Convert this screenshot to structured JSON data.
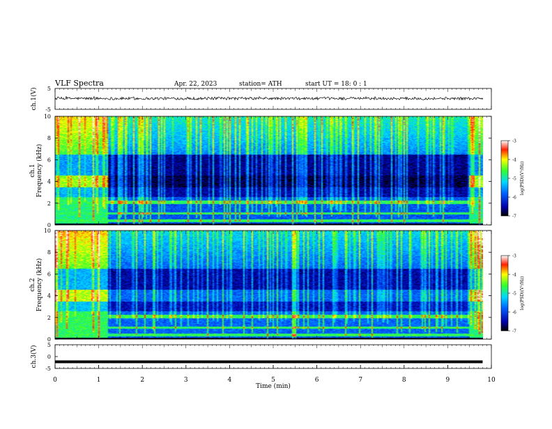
{
  "header": {
    "title": "VLF  Spectra",
    "date": "Apr. 22, 2023",
    "station": "station= ATH",
    "start": "start  UT  =    18: 0   : 1"
  },
  "chart_data": [
    {
      "type": "line",
      "name": "ch1-waveform",
      "ylabel": "ch.1(V)",
      "ylim": [
        -5,
        5
      ],
      "yticks": [
        "5",
        "-5"
      ],
      "xlim": [
        0,
        10
      ],
      "x_unit": "min",
      "description_values": {
        "baseline": 0.2,
        "amplitude": 0.6
      }
    },
    {
      "type": "heatmap",
      "name": "ch1-spectrogram",
      "ylabel_top": "ch.1",
      "ylabel": "Frequency  (kHz)",
      "ylim": [
        0,
        10
      ],
      "yticks": [
        "0",
        "2",
        "4",
        "6",
        "8",
        "10"
      ],
      "xlim": [
        0,
        10
      ],
      "colorbar": {
        "label": "log(PSD)(V²/Hz)",
        "range": [
          -7,
          -3
        ],
        "ticks": [
          "-3",
          "-4",
          "-5",
          "-6",
          "-7"
        ]
      },
      "segments": [
        {
          "x": [
            0,
            1.2
          ],
          "level_high": -4.6,
          "level_low": -5.3,
          "band_4kHz": -4.3
        },
        {
          "x": [
            1.2,
            9.45
          ],
          "level_high": -5.6,
          "level_low": -6.4,
          "band_4kHz": -6.8
        },
        {
          "x": [
            9.45,
            9.8
          ],
          "level_high": -4.8,
          "level_low": -5.4,
          "band_4kHz": -4.3
        }
      ]
    },
    {
      "type": "heatmap",
      "name": "ch2-spectrogram",
      "ylabel_top": "ch.2",
      "ylabel": "Frequency  (kHz)",
      "ylim": [
        0,
        10
      ],
      "yticks": [
        "0",
        "2",
        "4",
        "6",
        "8",
        "10"
      ],
      "xlim": [
        0,
        10
      ],
      "colorbar": {
        "label": "log(PSD)(V²/Hz)",
        "range": [
          -7,
          -3
        ],
        "ticks": [
          "-3",
          "-4",
          "-5",
          "-6",
          "-7"
        ]
      },
      "segments": [
        {
          "x": [
            0,
            1.2
          ],
          "level_high": -4.5,
          "level_low": -5.2,
          "band_4kHz": -4.2
        },
        {
          "x": [
            1.2,
            9.45
          ],
          "level_high": -5.8,
          "level_low": -6.3,
          "band_4kHz": -5.8
        },
        {
          "x": [
            9.45,
            9.8
          ],
          "level_high": -4.7,
          "level_low": -5.3,
          "band_4kHz": -4.3
        }
      ]
    },
    {
      "type": "line",
      "name": "ch3-waveform",
      "ylabel": "ch.3(V)",
      "ylim": [
        -5,
        5
      ],
      "yticks": [
        "5",
        "0",
        "-5"
      ],
      "xlim": [
        0,
        10
      ],
      "xlabel": "Time  (min)",
      "xticks": [
        "0",
        "1",
        "2",
        "3",
        "4",
        "5",
        "6",
        "7",
        "8",
        "9",
        "10"
      ],
      "value": -2.2
    }
  ],
  "colors": {
    "axis": "#000000",
    "waveform": "#000000",
    "background": "#ffffff"
  }
}
